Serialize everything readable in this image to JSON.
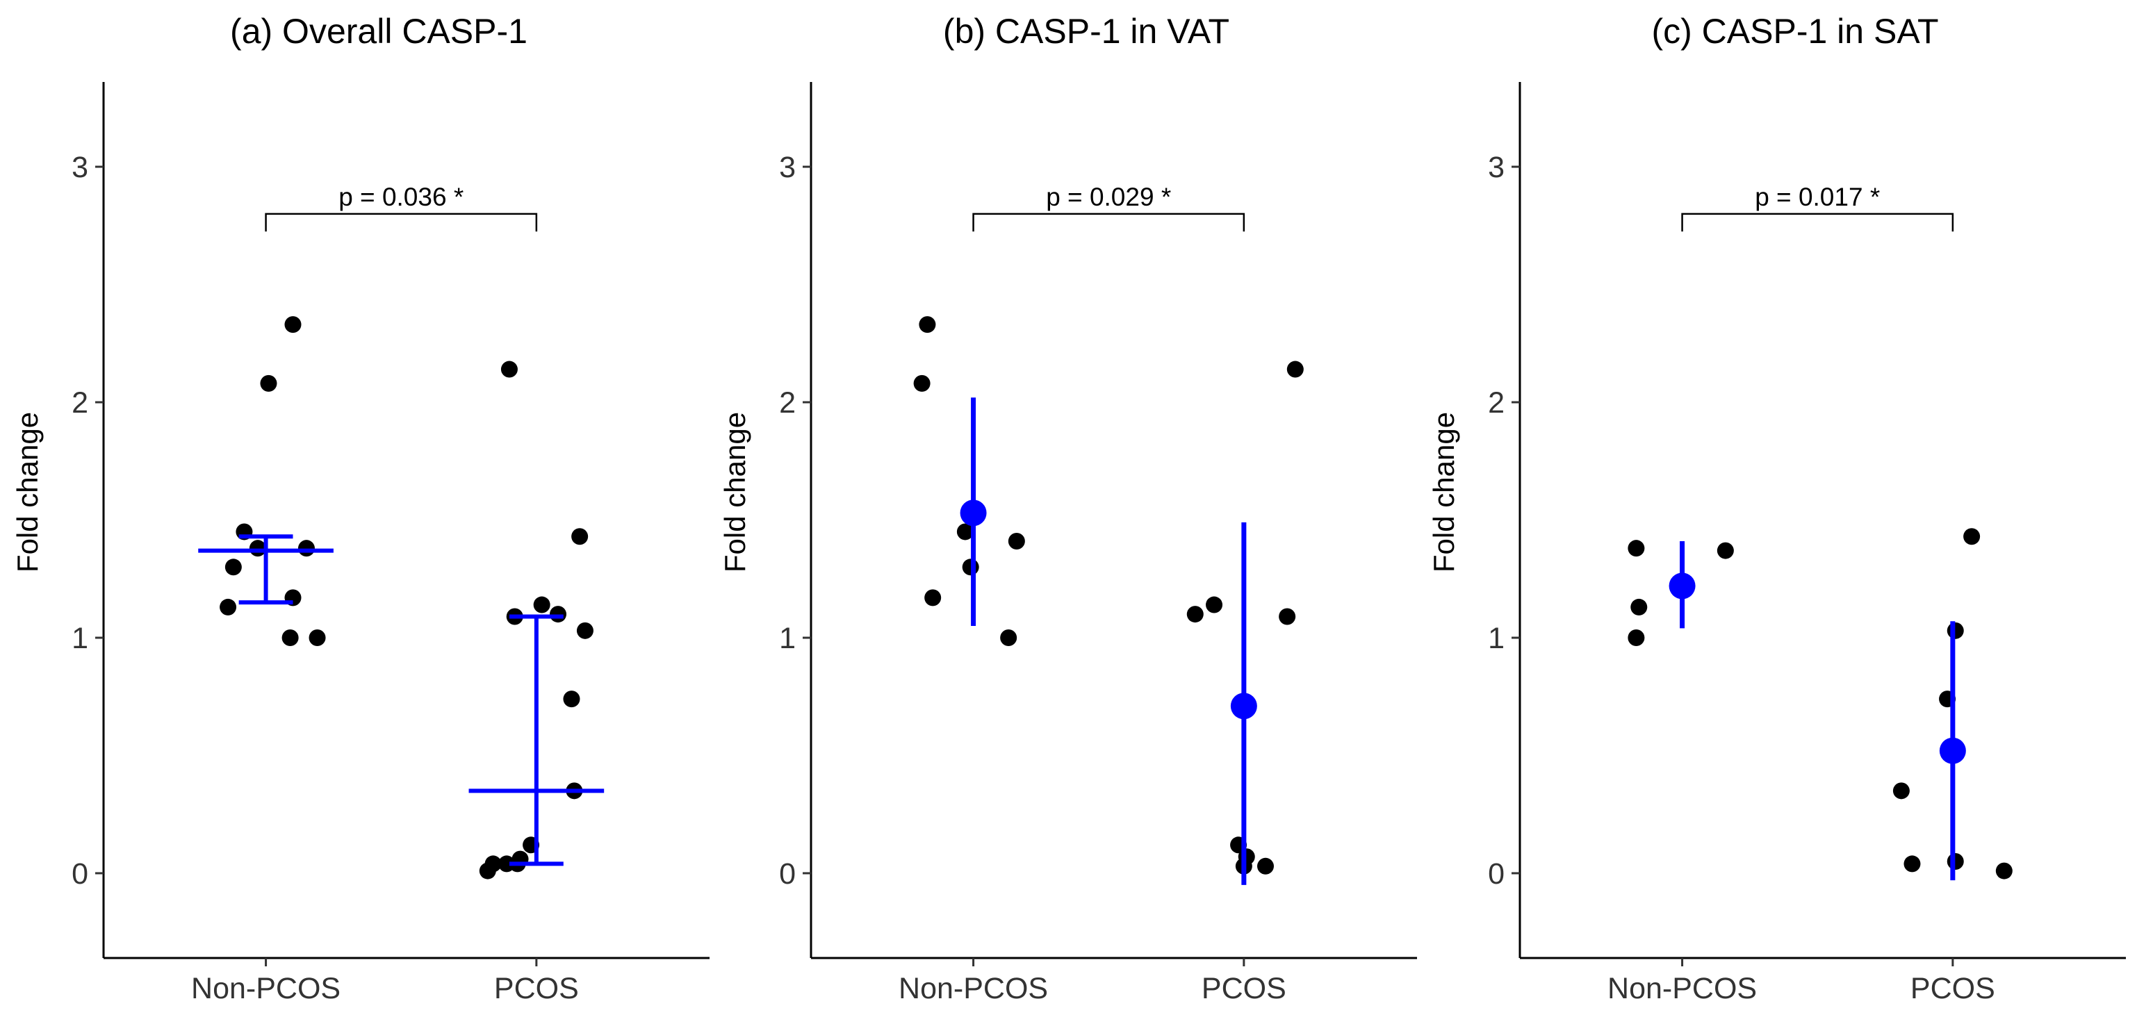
{
  "chart_data": [
    {
      "type": "scatter",
      "title": "(a) Overall CASP-1",
      "xlabel": "",
      "ylabel": "Fold change",
      "categories": [
        "Non-PCOS",
        "PCOS"
      ],
      "ylim": [
        -0.36,
        3.36
      ],
      "yticks": [
        "0",
        "1",
        "2",
        "3"
      ],
      "summary_style": "median-crossbar",
      "significance": {
        "text": "p = 0.036 *",
        "y": 2.8
      },
      "points": [
        {
          "x": 1.1,
          "y": 2.33
        },
        {
          "x": 1.01,
          "y": 2.08
        },
        {
          "x": 0.92,
          "y": 1.45
        },
        {
          "x": 0.97,
          "y": 1.38
        },
        {
          "x": 0.88,
          "y": 1.3
        },
        {
          "x": 1.15,
          "y": 1.38
        },
        {
          "x": 1.1,
          "y": 1.17
        },
        {
          "x": 0.86,
          "y": 1.13
        },
        {
          "x": 1.09,
          "y": 1.0
        },
        {
          "x": 1.19,
          "y": 1.0
        },
        {
          "x": 1.9,
          "y": 2.14
        },
        {
          "x": 2.16,
          "y": 1.43
        },
        {
          "x": 1.92,
          "y": 1.09
        },
        {
          "x": 2.02,
          "y": 1.14
        },
        {
          "x": 2.08,
          "y": 1.1
        },
        {
          "x": 2.18,
          "y": 1.03
        },
        {
          "x": 2.13,
          "y": 0.74
        },
        {
          "x": 2.14,
          "y": 0.35
        },
        {
          "x": 1.98,
          "y": 0.12
        },
        {
          "x": 1.82,
          "y": 0.01
        },
        {
          "x": 1.84,
          "y": 0.04
        },
        {
          "x": 1.89,
          "y": 0.04
        },
        {
          "x": 1.93,
          "y": 0.04
        },
        {
          "x": 1.94,
          "y": 0.06
        }
      ],
      "summary": [
        {
          "center": 1.37,
          "low": 1.15,
          "high": 1.43
        },
        {
          "center": 0.35,
          "low": 0.04,
          "high": 1.09
        }
      ]
    },
    {
      "type": "scatter",
      "title": "(b) CASP-1 in VAT",
      "xlabel": "",
      "ylabel": "Fold change",
      "categories": [
        "Non-PCOS",
        "PCOS"
      ],
      "ylim": [
        -0.36,
        3.36
      ],
      "yticks": [
        "0",
        "1",
        "2",
        "3"
      ],
      "summary_style": "mean-pointrange",
      "significance": {
        "text": "p = 0.029 *",
        "y": 2.8
      },
      "points": [
        {
          "x": 0.83,
          "y": 2.33
        },
        {
          "x": 0.81,
          "y": 2.08
        },
        {
          "x": 0.97,
          "y": 1.45
        },
        {
          "x": 0.99,
          "y": 1.3
        },
        {
          "x": 0.85,
          "y": 1.17
        },
        {
          "x": 1.16,
          "y": 1.41
        },
        {
          "x": 1.13,
          "y": 1.0
        },
        {
          "x": 1.82,
          "y": 1.1
        },
        {
          "x": 1.89,
          "y": 1.14
        },
        {
          "x": 2.16,
          "y": 1.09
        },
        {
          "x": 2.19,
          "y": 2.14
        },
        {
          "x": 1.98,
          "y": 0.12
        },
        {
          "x": 2.01,
          "y": 0.07
        },
        {
          "x": 2.0,
          "y": 0.03
        },
        {
          "x": 2.08,
          "y": 0.03
        }
      ],
      "summary": [
        {
          "center": 1.53,
          "low": 1.05,
          "high": 2.02
        },
        {
          "center": 0.71,
          "low": -0.05,
          "high": 1.49
        }
      ]
    },
    {
      "type": "scatter",
      "title": "(c) CASP-1 in SAT",
      "xlabel": "",
      "ylabel": "Fold change",
      "categories": [
        "Non-PCOS",
        "PCOS"
      ],
      "ylim": [
        -0.36,
        3.36
      ],
      "yticks": [
        "0",
        "1",
        "2",
        "3"
      ],
      "summary_style": "mean-pointrange",
      "significance": {
        "text": "p = 0.017 *",
        "y": 2.8
      },
      "points": [
        {
          "x": 0.83,
          "y": 1.38
        },
        {
          "x": 0.84,
          "y": 1.13
        },
        {
          "x": 0.83,
          "y": 1.0
        },
        {
          "x": 1.16,
          "y": 1.37
        },
        {
          "x": 2.07,
          "y": 1.43
        },
        {
          "x": 2.01,
          "y": 1.03
        },
        {
          "x": 1.98,
          "y": 0.74
        },
        {
          "x": 1.81,
          "y": 0.35
        },
        {
          "x": 1.85,
          "y": 0.04
        },
        {
          "x": 2.01,
          "y": 0.05
        },
        {
          "x": 2.19,
          "y": 0.01
        }
      ],
      "summary": [
        {
          "center": 1.22,
          "low": 1.04,
          "high": 1.41
        },
        {
          "center": 0.52,
          "low": -0.03,
          "high": 1.07
        }
      ]
    }
  ],
  "colors": {
    "points": "#000000",
    "summary": "#0000ff",
    "axis": "#000000"
  }
}
